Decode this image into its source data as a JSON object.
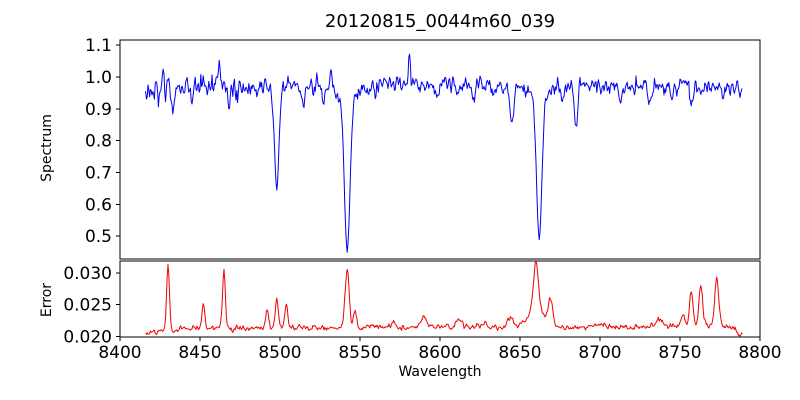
{
  "chart_data": {
    "type": "line",
    "title": "20120815_0044m60_039",
    "xlabel": "Wavelength",
    "grid": false,
    "legend": null,
    "xlim": [
      8400,
      8800
    ],
    "x_ticks": [
      8400,
      8450,
      8500,
      8550,
      8600,
      8650,
      8700,
      8750,
      8800
    ],
    "x_tick_labels": [
      "8400",
      "8450",
      "8500",
      "8550",
      "8600",
      "8650",
      "8700",
      "8750",
      "8800"
    ],
    "x_data_range": [
      8416,
      8789
    ],
    "sample_step": 0.5,
    "panels": [
      {
        "name": "spectrum",
        "ylabel": "Spectrum",
        "color": "#0000f0",
        "ylim": [
          0.428,
          1.116
        ],
        "ytick_values": [
          0.5,
          0.6,
          0.7,
          0.8,
          0.9,
          1.0,
          1.1
        ],
        "ytick_labels": [
          "0.5",
          "0.6",
          "0.7",
          "0.8",
          "0.9",
          "1.0",
          "1.1"
        ],
        "description": "Normalized stellar spectrum, continuum near 0.97 with Ca II triplet absorption lines at 8498, 8542, 8662",
        "continuum_points": [
          [
            8416,
            0.962
          ],
          [
            8460,
            0.972
          ],
          [
            8550,
            0.975
          ],
          [
            8650,
            0.975
          ],
          [
            8789,
            0.968
          ]
        ],
        "noise_regions": [
          [
            8416,
            8478,
            0.019
          ],
          [
            8478,
            8789,
            0.0135
          ]
        ],
        "absorption_lines": [
          [
            8424,
            0.04,
            0.8
          ],
          [
            8433,
            0.048,
            1.0
          ],
          [
            8445,
            0.035,
            0.9
          ],
          [
            8468,
            0.042,
            1.0
          ],
          [
            8498,
            0.295,
            1.3
          ],
          [
            8498,
            0.03,
            4.0
          ],
          [
            8514,
            0.065,
            1.1
          ],
          [
            8527,
            0.04,
            0.9
          ],
          [
            8542,
            0.47,
            1.7
          ],
          [
            8542,
            0.05,
            6.0
          ],
          [
            8560,
            0.03,
            1.0
          ],
          [
            8598,
            0.045,
            1.1
          ],
          [
            8611,
            0.035,
            1.0
          ],
          [
            8621,
            0.04,
            1.0
          ],
          [
            8634,
            0.035,
            1.0
          ],
          [
            8645,
            0.115,
            1.2
          ],
          [
            8662,
            0.44,
            1.6
          ],
          [
            8662,
            0.045,
            5.5
          ],
          [
            8676,
            0.048,
            1.0
          ],
          [
            8685,
            0.135,
            1.1
          ],
          [
            8713,
            0.04,
            1.0
          ],
          [
            8731,
            0.068,
            1.0
          ],
          [
            8745,
            0.04,
            1.0
          ],
          [
            8757,
            0.05,
            1.0
          ],
          [
            8777,
            0.04,
            1.0
          ]
        ],
        "emission_spikes": [
          [
            8427,
            0.035,
            0.6
          ],
          [
            8462,
            0.07,
            0.7
          ],
          [
            8532,
            0.05,
            0.6
          ],
          [
            8581,
            0.07,
            0.7
          ]
        ]
      },
      {
        "name": "error",
        "ylabel": "Error",
        "color": "#f00000",
        "ylim": [
          0.0199,
          0.0319
        ],
        "ytick_values": [
          0.02,
          0.025,
          0.03
        ],
        "ytick_labels": [
          "0.020",
          "0.025",
          "0.030"
        ],
        "description": "Error spectrum, baseline near 0.0215 with spikes at absorption/sky line positions",
        "baseline_points": [
          [
            8416,
            0.0206
          ],
          [
            8445,
            0.0213
          ],
          [
            8520,
            0.0213
          ],
          [
            8600,
            0.0215
          ],
          [
            8700,
            0.0214
          ],
          [
            8775,
            0.0216
          ],
          [
            8789,
            0.0212
          ]
        ],
        "noise_sigma": 0.00022,
        "peaks": [
          [
            8430,
            0.0103,
            0.9
          ],
          [
            8452,
            0.0037,
            0.8
          ],
          [
            8465,
            0.0088,
            0.9
          ],
          [
            8492,
            0.0028,
            0.9
          ],
          [
            8498,
            0.0047,
            0.9
          ],
          [
            8504,
            0.0038,
            0.9
          ],
          [
            8542,
            0.0094,
            1.3
          ],
          [
            8547,
            0.0028,
            1.0
          ],
          [
            8571,
            0.0008,
            1.5
          ],
          [
            8590,
            0.0013,
            2.0
          ],
          [
            8612,
            0.0009,
            2.0
          ],
          [
            8627,
            0.0009,
            1.5
          ],
          [
            8644,
            0.0015,
            1.5
          ],
          [
            8660,
            0.0072,
            1.6
          ],
          [
            8660,
            0.0028,
            5.0
          ],
          [
            8669,
            0.0042,
            1.3
          ],
          [
            8700,
            0.0005,
            3.0
          ],
          [
            8737,
            0.0013,
            2.0
          ],
          [
            8752,
            0.002,
            1.2
          ],
          [
            8757,
            0.0056,
            1.1
          ],
          [
            8763,
            0.0066,
            1.1
          ],
          [
            8773,
            0.0079,
            1.2
          ],
          [
            8788,
            -0.0009,
            2.0
          ]
        ]
      }
    ]
  }
}
